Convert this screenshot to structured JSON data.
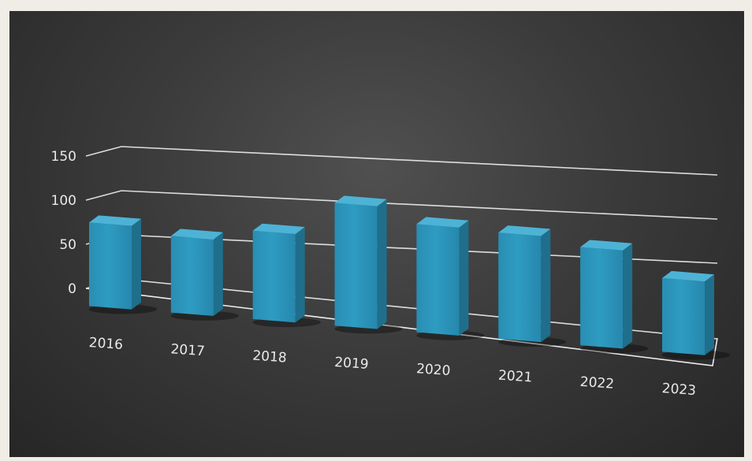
{
  "chart_data": {
    "type": "bar",
    "categories": [
      "2016",
      "2017",
      "2018",
      "2019",
      "2020",
      "2021",
      "2022",
      "2023"
    ],
    "values": [
      85,
      78,
      90,
      125,
      110,
      108,
      100,
      75
    ],
    "yticks": [
      "0",
      "50",
      "100",
      "150"
    ],
    "ylim": [
      0,
      150
    ],
    "grid": true,
    "legend": "none",
    "colors": {
      "bar_front": "#2e9cc2",
      "bar_side": "#1f6f8c",
      "bar_top": "#4db3d6",
      "gridline": "#eeeeee",
      "background": "#3a3a3a"
    }
  }
}
